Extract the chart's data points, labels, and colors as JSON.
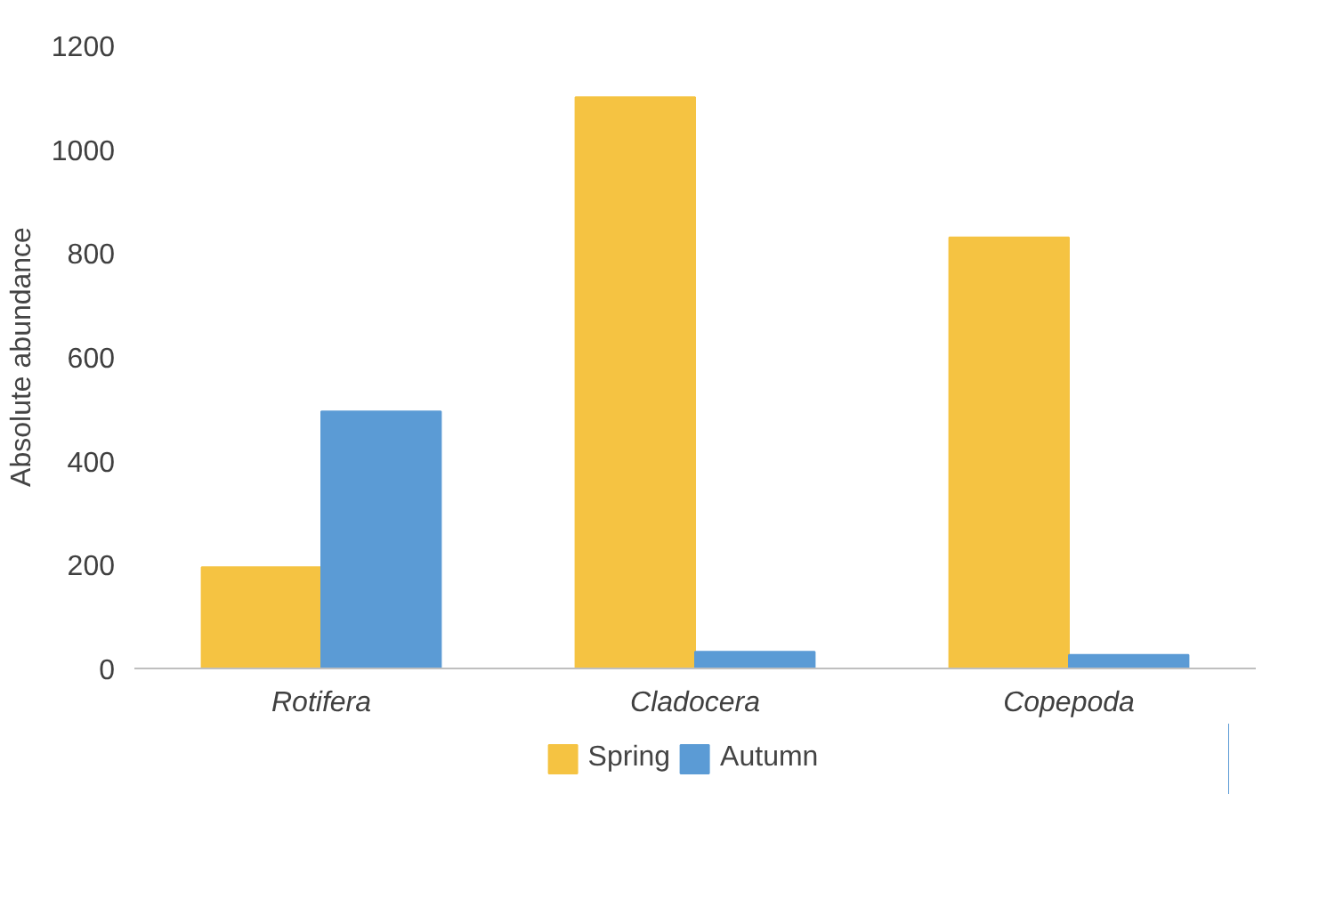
{
  "chart_data": {
    "type": "bar",
    "ylabel": "Absolute abundance",
    "categories": [
      "Rotifera",
      "Cladocera",
      "Copepoda"
    ],
    "series": [
      {
        "name": "Spring",
        "color": "#f5c342",
        "values": [
          195,
          1100,
          830
        ]
      },
      {
        "name": "Autumn",
        "color": "#5b9bd5",
        "values": [
          495,
          32,
          26
        ]
      }
    ],
    "ylim": [
      0,
      1200
    ],
    "yticks": [
      0,
      200,
      400,
      600,
      800,
      1000,
      1200
    ],
    "grid": false,
    "legend": "bottom"
  }
}
